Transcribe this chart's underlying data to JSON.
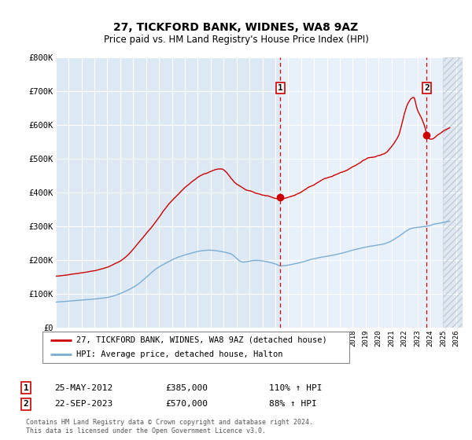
{
  "title": "27, TICKFORD BANK, WIDNES, WA8 9AZ",
  "subtitle": "Price paid vs. HM Land Registry's House Price Index (HPI)",
  "ylim": [
    0,
    800000
  ],
  "xlim_start": 1995.0,
  "xlim_end": 2026.5,
  "yticks": [
    0,
    100000,
    200000,
    300000,
    400000,
    500000,
    600000,
    700000,
    800000
  ],
  "ytick_labels": [
    "£0",
    "£100K",
    "£200K",
    "£300K",
    "£400K",
    "£500K",
    "£600K",
    "£700K",
    "£800K"
  ],
  "plot_bg": "#dce9f5",
  "plot_bg_light": "#e8f0fa",
  "grid_color": "#ffffff",
  "red_color": "#cc0000",
  "blue_color": "#7aadd4",
  "marker1_date": 2012.39,
  "marker1_value": 385000,
  "marker2_date": 2023.72,
  "marker2_value": 570000,
  "hatch_start": 2025.0,
  "legend_line1": "27, TICKFORD BANK, WIDNES, WA8 9AZ (detached house)",
  "legend_line2": "HPI: Average price, detached house, Halton",
  "annotation1_date": "25-MAY-2012",
  "annotation1_price": "£385,000",
  "annotation1_hpi": "110% ↑ HPI",
  "annotation2_date": "22-SEP-2023",
  "annotation2_price": "£570,000",
  "annotation2_hpi": "88% ↑ HPI",
  "footer": "Contains HM Land Registry data © Crown copyright and database right 2024.\nThis data is licensed under the Open Government Licence v3.0."
}
